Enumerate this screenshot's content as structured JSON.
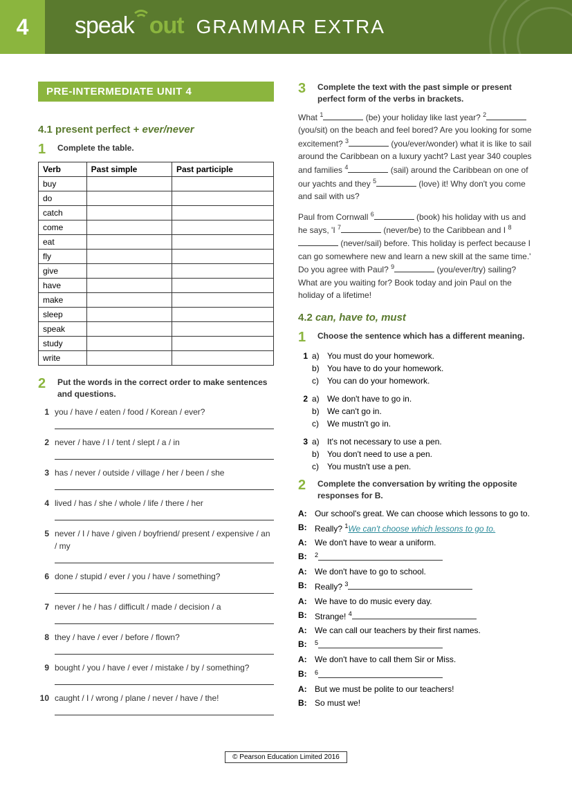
{
  "colors": {
    "header_bg": "#5a7a2e",
    "accent": "#8bb53e",
    "text": "#333333",
    "example_answer": "#2a8a9a"
  },
  "header": {
    "unit_number": "4",
    "brand_speak": "speak",
    "brand_out": "out",
    "page_title": "GRAMMAR EXTRA"
  },
  "unit_banner": "PRE-INTERMEDIATE UNIT 4",
  "section_41": {
    "heading_num": "4.1",
    "heading_main": "present perfect + ",
    "heading_em": "ever/never"
  },
  "ex1": {
    "num": "1",
    "instr": "Complete the table.",
    "headers": [
      "Verb",
      "Past simple",
      "Past participle"
    ],
    "verbs": [
      "buy",
      "do",
      "catch",
      "come",
      "eat",
      "fly",
      "give",
      "have",
      "make",
      "sleep",
      "speak",
      "study",
      "write"
    ]
  },
  "ex2": {
    "num": "2",
    "instr": "Put the words in the correct order to make sentences and questions.",
    "items": [
      "you / have / eaten / food / Korean / ever?",
      "never / have / I / tent / slept / a / in",
      "has / never / outside / village / her / been / she",
      "lived / has / she / whole / life / there / her",
      "never / I / have / given / boyfriend/ present / expensive / an / my",
      "done / stupid / ever / you / have / something?",
      "never / he / has / difficult / made / decision / a",
      "they / have / ever / before / flown?",
      "bought / you / have / ever / mistake / by / something?",
      "caught / I / wrong / plane / never / have / the!"
    ]
  },
  "ex3": {
    "num": "3",
    "instr": "Complete the text with the past simple or present perfect form of the verbs in brackets.",
    "para1_parts": [
      {
        "t": "What "
      },
      {
        "sup": "1"
      },
      {
        "blank": true
      },
      {
        "t": " (be) your holiday like last year? "
      },
      {
        "sup": "2"
      },
      {
        "blank": true
      },
      {
        "t": " (you/sit) on the beach and feel bored? Are you looking for some excitement? "
      },
      {
        "sup": "3"
      },
      {
        "blank": true
      },
      {
        "t": " (you/ever/wonder) what it is like to sail around the Caribbean on a luxury yacht? Last year 340 couples and families "
      },
      {
        "sup": "4"
      },
      {
        "blank": true
      },
      {
        "t": " (sail) around the Caribbean on one of our yachts and they "
      },
      {
        "sup": "5"
      },
      {
        "blank": true
      },
      {
        "t": " (love) it! Why don't you come and sail with us?"
      }
    ],
    "para2_parts": [
      {
        "t": "Paul from Cornwall "
      },
      {
        "sup": "6"
      },
      {
        "blank": true
      },
      {
        "t": " (book) his holiday with us and he says, 'I "
      },
      {
        "sup": "7"
      },
      {
        "blank": true
      },
      {
        "t": " (never/be) to the Caribbean and I "
      },
      {
        "sup": "8"
      },
      {
        "blank": true
      },
      {
        "t": " (never/sail) before. This holiday is perfect because I can go somewhere new and learn a new skill at the same time.' Do you agree with Paul? "
      },
      {
        "sup": "9"
      },
      {
        "blank": true
      },
      {
        "t": " (you/ever/try) sailing? What are you waiting for? Book today and join Paul on the holiday of a lifetime!"
      }
    ]
  },
  "section_42": {
    "heading_num": "4.2",
    "heading_em": "can, have to, must"
  },
  "ex4": {
    "num": "1",
    "instr": "Choose the sentence which has a different meaning.",
    "groups": [
      {
        "n": "1",
        "opts": [
          {
            "l": "a)",
            "t": "You must do your homework."
          },
          {
            "l": "b)",
            "t": "You have to do your homework."
          },
          {
            "l": "c)",
            "t": "You can do your homework."
          }
        ]
      },
      {
        "n": "2",
        "opts": [
          {
            "l": "a)",
            "t": "We don't have to go in."
          },
          {
            "l": "b)",
            "t": "We can't go in."
          },
          {
            "l": "c)",
            "t": "We mustn't go in."
          }
        ]
      },
      {
        "n": "3",
        "opts": [
          {
            "l": "a)",
            "t": "It's not necessary to use a pen."
          },
          {
            "l": "b)",
            "t": "You don't need to use a pen."
          },
          {
            "l": "c)",
            "t": "You mustn't use a pen."
          }
        ]
      }
    ]
  },
  "ex5": {
    "num": "2",
    "instr": "Complete the conversation by writing the opposite responses for B.",
    "lines": [
      {
        "sp": "A:",
        "t": "Our school's great. We can choose which lessons to go to."
      },
      {
        "sp": "B:",
        "pre": "Really? ",
        "sup": "1",
        "example": "We can't choose which lessons to go to."
      },
      {
        "sp": "A:",
        "t": "We don't have to wear a uniform."
      },
      {
        "sp": "B:",
        "sup": "2",
        "blank": true
      },
      {
        "sp": "A:",
        "t": "We don't have to go to school."
      },
      {
        "sp": "B:",
        "pre": "Really? ",
        "sup": "3",
        "blank": true
      },
      {
        "sp": "A:",
        "t": "We have to do music every day."
      },
      {
        "sp": "B:",
        "pre": "Strange! ",
        "sup": "4",
        "blank": true
      },
      {
        "sp": "A:",
        "t": "We can call our teachers by their first names."
      },
      {
        "sp": "B:",
        "sup": "5",
        "blank": true
      },
      {
        "sp": "A:",
        "t": "We don't have to call them Sir or Miss."
      },
      {
        "sp": "B:",
        "sup": "6",
        "blank": true
      },
      {
        "sp": "A:",
        "t": "But we must be polite to our teachers!"
      },
      {
        "sp": "B:",
        "t": "So must we!"
      }
    ]
  },
  "footer": "© Pearson Education Limited 2016"
}
